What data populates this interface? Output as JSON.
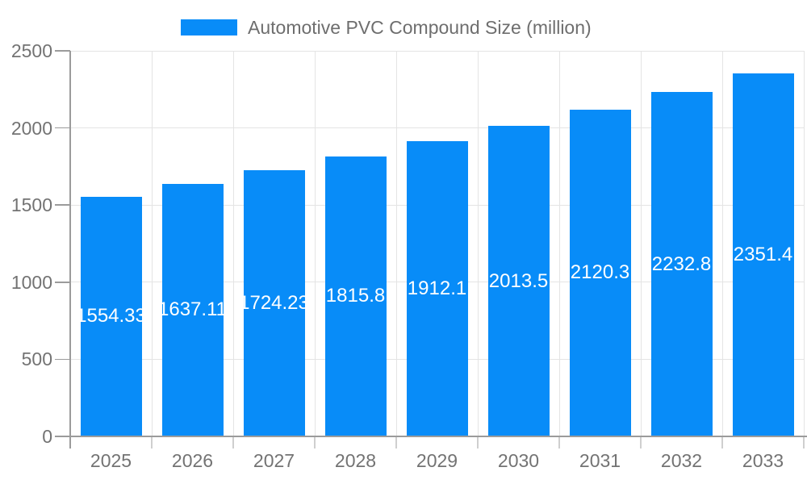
{
  "legend": {
    "label": "Automotive PVC Compound Size (million)"
  },
  "chart_data": {
    "type": "bar",
    "series_name": "Automotive PVC Compound Size (million)",
    "categories": [
      "2025",
      "2026",
      "2027",
      "2028",
      "2029",
      "2030",
      "2031",
      "2032",
      "2033"
    ],
    "values": [
      1554.33,
      1637.11,
      1724.23,
      1815.8,
      1912.1,
      2013.5,
      2120.3,
      2232.8,
      2351.4
    ],
    "bar_labels": [
      "1554.33",
      "1637.11",
      "1724.23",
      "1815.8",
      "1912.1",
      "2013.5",
      "2120.3",
      "2232.8",
      "2351.4"
    ],
    "xlabel": "",
    "ylabel": "",
    "ylim": [
      0,
      2500
    ],
    "yticks": [
      0,
      500,
      1000,
      1500,
      2000,
      2500
    ],
    "grid": true,
    "legend_position": "top",
    "colors": {
      "bar": "#088cf8",
      "bar_label": "#ffffff",
      "axis_line": "#9b9b9b",
      "grid_line": "#e4e4e4",
      "x_tick": "#cfcfcf",
      "axis_text": "#737373",
      "legend_text": "#6e6e6e",
      "background": "#ffffff"
    }
  }
}
